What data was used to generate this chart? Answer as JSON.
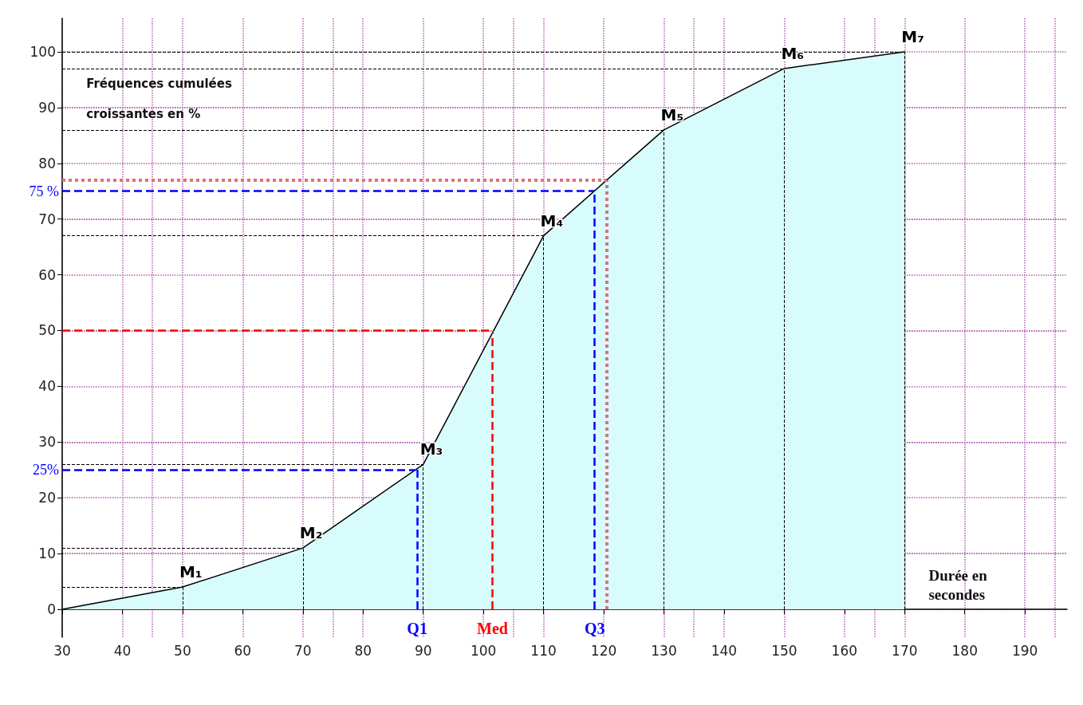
{
  "chart_data": {
    "type": "area",
    "ylabel": "Fréquences cumulées croissantes en %",
    "xlabel": "Durée en secondes",
    "x": [
      30,
      50,
      70,
      90,
      110,
      130,
      150,
      170
    ],
    "series": [
      {
        "color": "#000000",
        "values": [
          0,
          4,
          11,
          26,
          67,
          86,
          97,
          100
        ]
      }
    ],
    "xlim": [
      30,
      197
    ],
    "xticks": [
      30,
      40,
      50,
      60,
      70,
      80,
      90,
      100,
      110,
      120,
      130,
      140,
      150,
      160,
      170,
      180,
      190
    ],
    "ylim": [
      -5,
      106
    ],
    "yticks": [
      0,
      10,
      20,
      30,
      40,
      50,
      60,
      70,
      80,
      90,
      100
    ],
    "grid": true,
    "marker": "none",
    "line_style": "solid",
    "ref_lines": [
      {
        "axis": "x",
        "value": 89,
        "label": "Q1",
        "color": "#0000ff",
        "line_style": "dashed"
      },
      {
        "axis": "x",
        "value": 101.5,
        "label": "Med",
        "color": "#ff0000",
        "line_style": "dashed"
      },
      {
        "axis": "x",
        "value": 118.5,
        "label": "Q3",
        "color": "#0000ff",
        "line_style": "dashed"
      },
      {
        "axis": "y",
        "value": 25,
        "label": "25%",
        "color": "#0000ff",
        "line_style": "dashed"
      },
      {
        "axis": "y",
        "value": 50,
        "color": "#ff0000",
        "line_style": "dashed"
      },
      {
        "axis": "y",
        "value": 75,
        "label": "75 %",
        "color": "#0000ff",
        "line_style": "dashed"
      },
      {
        "axis": "y",
        "value": 77,
        "color": "#e07080",
        "line_style": "dotted"
      },
      {
        "axis": "x",
        "value": 120.5,
        "color": "#e07080",
        "line_style": "dotted"
      }
    ],
    "annotations": [
      {
        "text": "M₁",
        "x": 50,
        "y": 4
      },
      {
        "text": "M₂",
        "x": 70,
        "y": 11
      },
      {
        "text": "M₃",
        "x": 90,
        "y": 26
      },
      {
        "text": "M₄",
        "x": 110,
        "y": 67
      },
      {
        "text": "M₅",
        "x": 130,
        "y": 86
      },
      {
        "text": "M₆",
        "x": 150,
        "y": 97
      },
      {
        "text": "M₇",
        "x": 170,
        "y": 100
      }
    ]
  }
}
